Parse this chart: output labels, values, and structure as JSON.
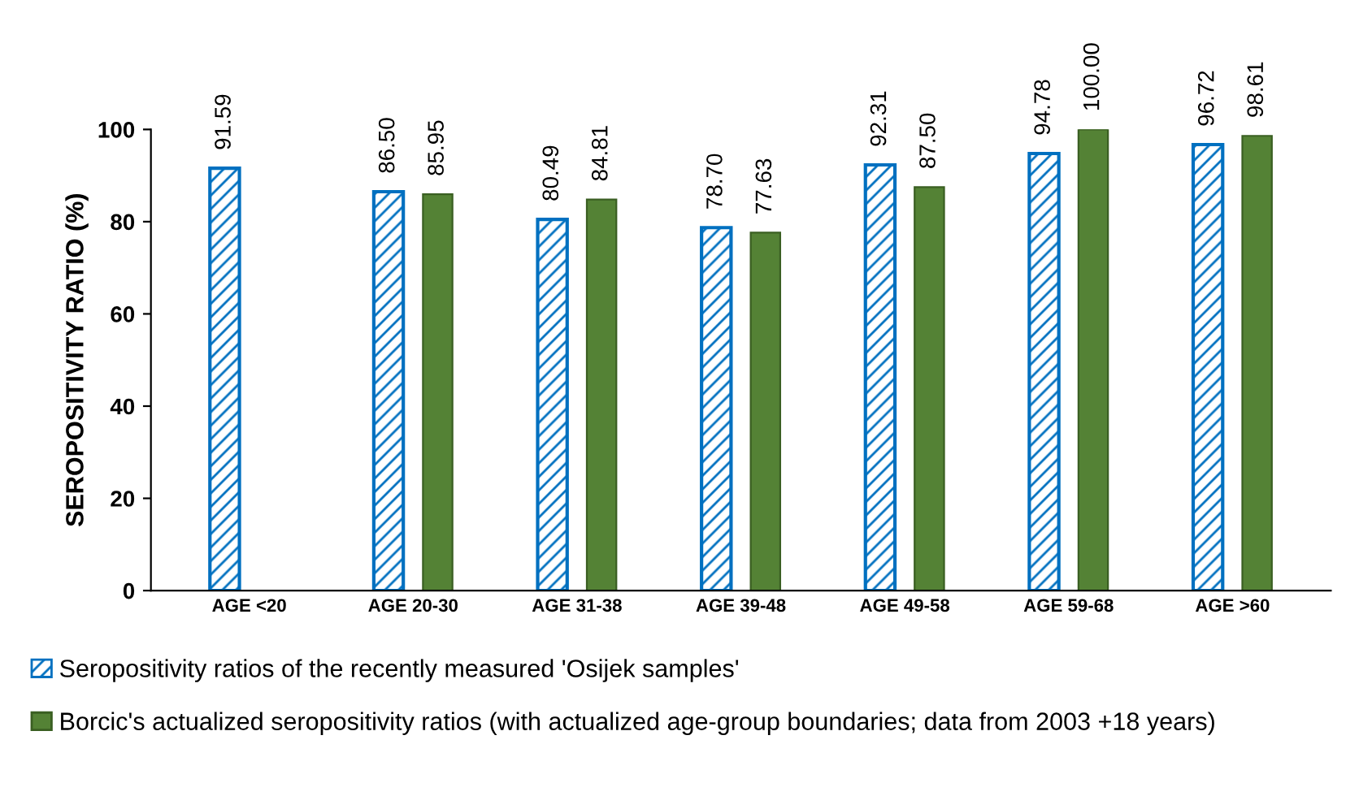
{
  "chart_data": {
    "type": "bar",
    "ylabel": "SEROPOSITIVITY RATIO (%)",
    "categories": [
      "AGE <20",
      "AGE 20-30",
      "AGE 31-38",
      "AGE 39-48",
      "AGE 49-58",
      "AGE 59-68",
      "AGE >60"
    ],
    "series": [
      {
        "name": "Seropositivity ratios of the recently measured 'Osijek samples'",
        "color": "#0070c0",
        "values": [
          91.59,
          86.5,
          80.49,
          78.7,
          92.31,
          94.78,
          96.72
        ],
        "value_labels": [
          "91.59",
          "86.50",
          "80.49",
          "78.70",
          "92.31",
          "94.78",
          "96.72"
        ]
      },
      {
        "name": "Borcic's actualized seropositivity ratios (with actualized age-group boundaries; data from 2003 +18 years)",
        "color": "#548235",
        "values": [
          null,
          85.95,
          84.81,
          77.63,
          87.5,
          100.0,
          98.61
        ],
        "value_labels": [
          null,
          "85.95",
          "84.81",
          "77.63",
          "87.50",
          "100.00",
          "98.61"
        ]
      }
    ],
    "ylim": [
      0,
      100
    ],
    "yticks": [
      0,
      20,
      40,
      60,
      80,
      100
    ],
    "grid": false,
    "legend": "bottom"
  }
}
